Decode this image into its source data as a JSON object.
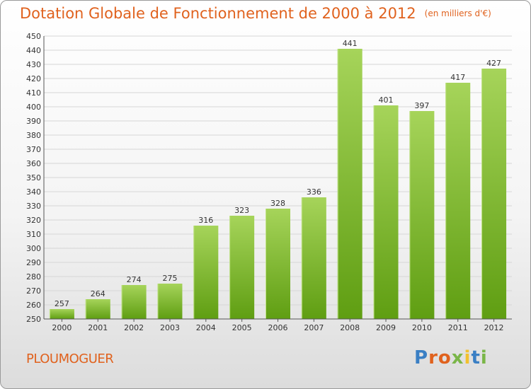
{
  "title": "Dotation Globale de Fonctionnement de 2000 à 2012",
  "subtitle": "(en milliers d'€)",
  "commune": "PLOUMOGUER",
  "logo": {
    "text": "Proxiti",
    "letters": [
      {
        "ch": "P",
        "color": "#3a7fc4"
      },
      {
        "ch": "r",
        "color": "#e0621e"
      },
      {
        "ch": "o",
        "color": "#e0621e"
      },
      {
        "ch": "x",
        "color": "#7ab648"
      },
      {
        "ch": "i",
        "color": "#f2c12e"
      },
      {
        "ch": "t",
        "color": "#3a7fc4"
      },
      {
        "ch": "i",
        "color": "#7ab648"
      }
    ]
  },
  "colors": {
    "title": "#e0621e",
    "bar_light": "#a6d45a",
    "bar_dark": "#5f9e12",
    "grid": "#d6d6d6"
  },
  "chart_data": {
    "type": "bar",
    "categories": [
      "2000",
      "2001",
      "2002",
      "2003",
      "2004",
      "2005",
      "2006",
      "2007",
      "2008",
      "2009",
      "2010",
      "2011",
      "2012"
    ],
    "values": [
      257,
      264,
      274,
      275,
      316,
      323,
      328,
      336,
      441,
      401,
      397,
      417,
      427
    ],
    "ylim": [
      250,
      450
    ],
    "yticks": [
      250,
      260,
      270,
      280,
      290,
      300,
      310,
      320,
      330,
      340,
      350,
      360,
      370,
      380,
      390,
      400,
      410,
      420,
      430,
      440,
      450
    ],
    "grid": true,
    "legend": "none"
  }
}
